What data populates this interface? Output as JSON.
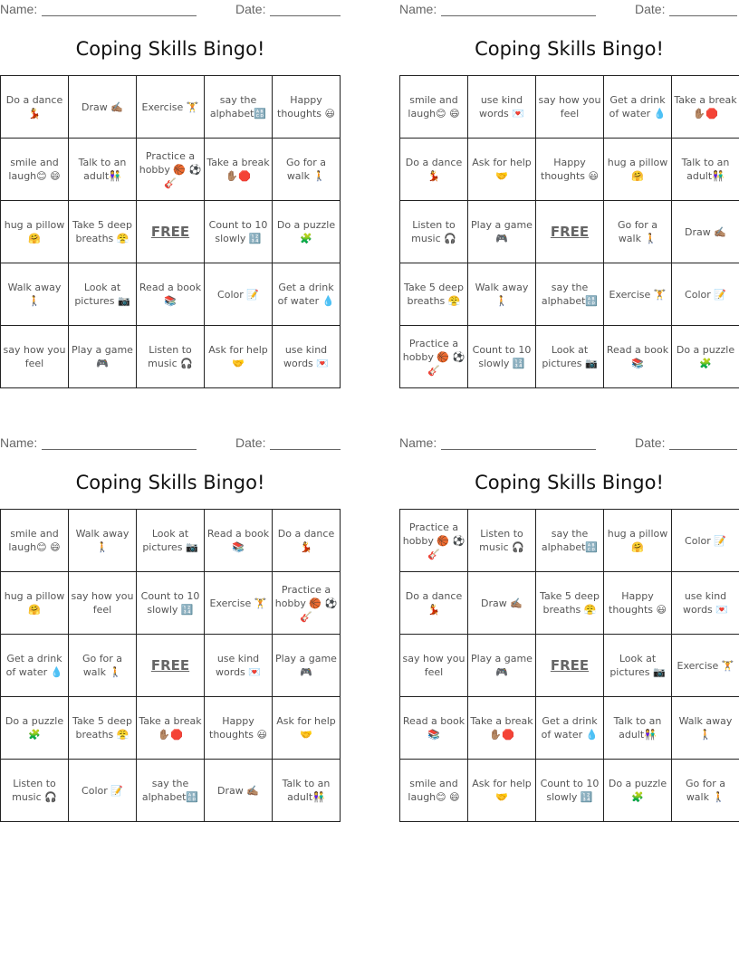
{
  "cards": [
    {
      "name_label": "Name:",
      "date_label": "Date:",
      "title": "Coping Skills Bingo!",
      "cells": [
        [
          "Do a dance 💃",
          "Draw ✍🏽",
          "Exercise 🏋️",
          "say the alphabet🔠",
          "Happy thoughts 😃"
        ],
        [
          "smile and laugh😊 😄",
          "Talk to an adult👫",
          "Practice a hobby 🏀 ⚽ 🎸",
          "Take a break ✋🏽🛑",
          "Go for a walk 🚶"
        ],
        [
          "hug a pillow 🤗",
          "Take 5 deep breaths 😤",
          "FREE",
          "Count to 10 slowly 🔢",
          "Do a puzzle 🧩"
        ],
        [
          "Walk away 🚶",
          "Look at pictures 📷",
          "Read a book 📚",
          "Color 📝",
          "Get a drink of water 💧"
        ],
        [
          "say how you feel",
          "Play a game 🎮",
          "Listen to music 🎧",
          "Ask for help 🤝",
          "use kind words 💌"
        ]
      ]
    },
    {
      "name_label": "Name:",
      "date_label": "Date:",
      "title": "Coping Skills Bingo!",
      "cells": [
        [
          "smile and laugh😊 😄",
          "use kind words 💌",
          "say how you feel",
          "Get a drink of water 💧",
          "Take a break ✋🏽🛑"
        ],
        [
          "Do a dance 💃",
          "Ask for help 🤝",
          "Happy thoughts 😃",
          "hug a pillow 🤗",
          "Talk to an adult👫"
        ],
        [
          "Listen to music 🎧",
          "Play a game 🎮",
          "FREE",
          "Go for a walk 🚶",
          "Draw ✍🏽"
        ],
        [
          "Take 5 deep breaths 😤",
          "Walk away 🚶",
          "say the alphabet🔠",
          "Exercise 🏋️",
          "Color 📝"
        ],
        [
          "Practice a hobby 🏀 ⚽ 🎸",
          "Count to 10 slowly 🔢",
          "Look at pictures 📷",
          "Read a book 📚",
          "Do a puzzle 🧩"
        ]
      ]
    },
    {
      "name_label": "Name:",
      "date_label": "Date:",
      "title": "Coping Skills Bingo!",
      "cells": [
        [
          "smile and laugh😊 😄",
          "Walk away 🚶",
          "Look at pictures 📷",
          "Read a book 📚",
          "Do a dance 💃"
        ],
        [
          "hug a pillow 🤗",
          "say how you feel",
          "Count to 10 slowly 🔢",
          "Exercise 🏋️",
          "Practice a hobby 🏀 ⚽ 🎸"
        ],
        [
          "Get a drink of water 💧",
          "Go for a walk 🚶",
          "FREE",
          "use kind words 💌",
          "Play a game 🎮"
        ],
        [
          "Do a puzzle 🧩",
          "Take 5 deep breaths 😤",
          "Take a break ✋🏽🛑",
          "Happy thoughts 😃",
          "Ask for help 🤝"
        ],
        [
          "Listen to music 🎧",
          "Color 📝",
          "say the alphabet🔠",
          "Draw ✍🏽",
          "Talk to an adult👫"
        ]
      ]
    },
    {
      "name_label": "Name:",
      "date_label": "Date:",
      "title": "Coping Skills Bingo!",
      "cells": [
        [
          "Practice a hobby 🏀 ⚽ 🎸",
          "Listen to music 🎧",
          "say the alphabet🔠",
          "hug a pillow 🤗",
          "Color 📝"
        ],
        [
          "Do a dance 💃",
          "Draw ✍🏽",
          "Take 5 deep breaths 😤",
          "Happy thoughts 😃",
          "use kind words 💌"
        ],
        [
          "say how you feel",
          "Play a game 🎮",
          "FREE",
          "Look at pictures 📷",
          "Exercise 🏋️"
        ],
        [
          "Read a book 📚",
          "Take a break ✋🏽🛑",
          "Get a drink of water 💧",
          "Talk to an adult👫",
          "Walk away 🚶"
        ],
        [
          "smile and laugh😊 😄",
          "Ask for help 🤝",
          "Count to 10 slowly 🔢",
          "Do a puzzle 🧩",
          "Go for a walk 🚶"
        ]
      ]
    }
  ]
}
